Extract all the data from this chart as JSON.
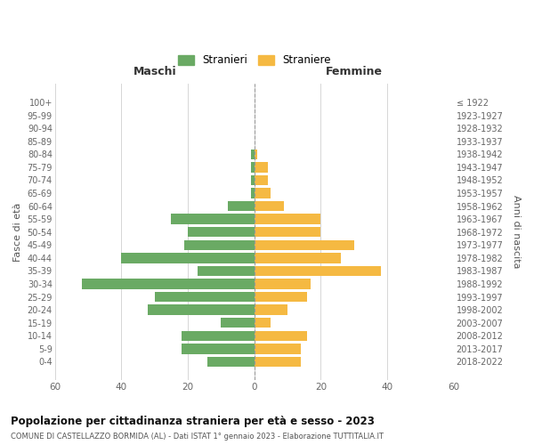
{
  "age_groups": [
    "0-4",
    "5-9",
    "10-14",
    "15-19",
    "20-24",
    "25-29",
    "30-34",
    "35-39",
    "40-44",
    "45-49",
    "50-54",
    "55-59",
    "60-64",
    "65-69",
    "70-74",
    "75-79",
    "80-84",
    "85-89",
    "90-94",
    "95-99",
    "100+"
  ],
  "birth_years": [
    "2018-2022",
    "2013-2017",
    "2008-2012",
    "2003-2007",
    "1998-2002",
    "1993-1997",
    "1988-1992",
    "1983-1987",
    "1978-1982",
    "1973-1977",
    "1968-1972",
    "1963-1967",
    "1958-1962",
    "1953-1957",
    "1948-1952",
    "1943-1947",
    "1938-1942",
    "1933-1937",
    "1928-1932",
    "1923-1927",
    "≤ 1922"
  ],
  "males": [
    14,
    22,
    22,
    10,
    32,
    30,
    52,
    17,
    40,
    21,
    20,
    25,
    8,
    1,
    1,
    1,
    1,
    0,
    0,
    0,
    0
  ],
  "females": [
    14,
    14,
    16,
    5,
    10,
    16,
    17,
    38,
    26,
    30,
    20,
    20,
    9,
    5,
    4,
    4,
    1,
    0,
    0,
    0,
    0
  ],
  "male_color": "#6aaa64",
  "female_color": "#f5b942",
  "title": "Popolazione per cittadinanza straniera per età e sesso - 2023",
  "subtitle": "COMUNE DI CASTELLAZZO BORMIDA (AL) - Dati ISTAT 1° gennaio 2023 - Elaborazione TUTTITALIA.IT",
  "xlabel_left": "Maschi",
  "xlabel_right": "Femmine",
  "ylabel_left": "Fasce di età",
  "ylabel_right": "Anni di nascita",
  "xlim": 60,
  "legend_stranieri": "Stranieri",
  "legend_straniere": "Straniere",
  "background_color": "#ffffff",
  "grid_color": "#d0d0d0"
}
